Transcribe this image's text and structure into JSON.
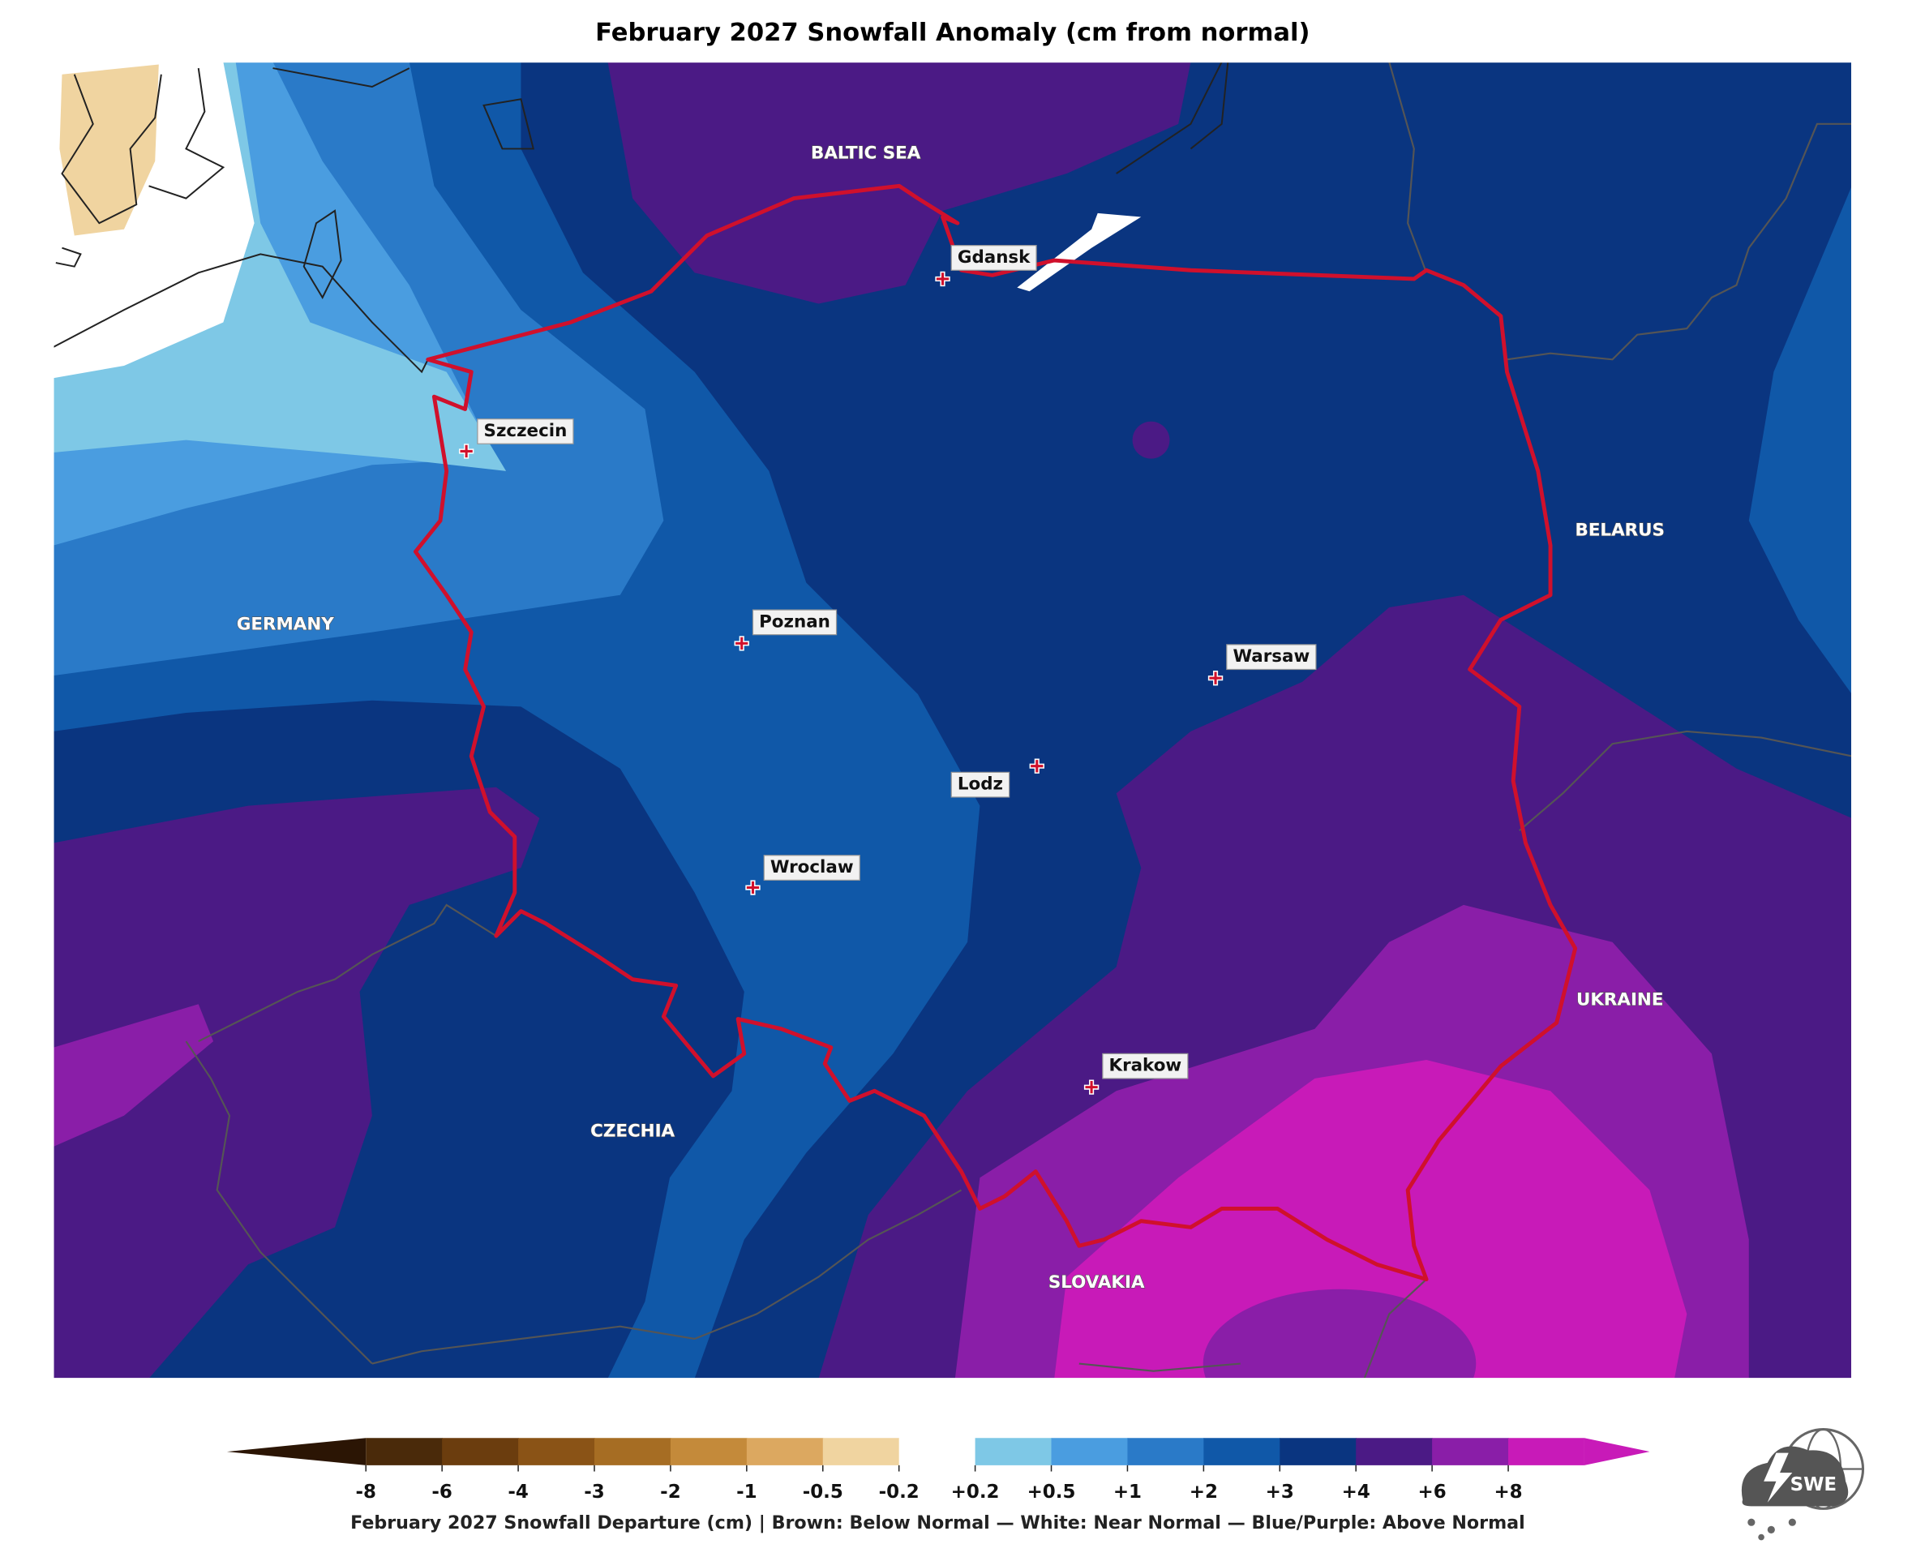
{
  "title": "February 2027 Snowfall Anomaly (cm from normal)",
  "region_labels": [
    "BALTIC SEA",
    "GERMANY",
    "BELARUS",
    "UKRAINE",
    "CZECHIA",
    "SLOVAKIA"
  ],
  "cities": [
    "Gdansk",
    "Szczecin",
    "Poznan",
    "Warsaw",
    "Lodz",
    "Wroclaw",
    "Krakow"
  ],
  "colorbar": {
    "colors": [
      "#2b1504",
      "#4a2a0a",
      "#6b3d0e",
      "#8a5316",
      "#a66d23",
      "#c48a3a",
      "#dca860",
      "#f0d4a0",
      "#ffffff",
      "#7ec8e6",
      "#4a9de0",
      "#2a7ac8",
      "#1058a8",
      "#0a3580",
      "#4b1a85",
      "#8a1ea8",
      "#c81ab8"
    ],
    "tick_labels": [
      "-8",
      "-6",
      "-4",
      "-3",
      "-2",
      "-1",
      "-0.5",
      "-0.2",
      "+0.2",
      "+0.5",
      "+1",
      "+2",
      "+3",
      "+4",
      "+6",
      "+8"
    ],
    "caption": "February 2027 Snowfall Departure (cm)  |  Brown: Below Normal  —  White: Near Normal  —  Blue/Purple: Above Normal"
  },
  "logo": "SWE"
}
